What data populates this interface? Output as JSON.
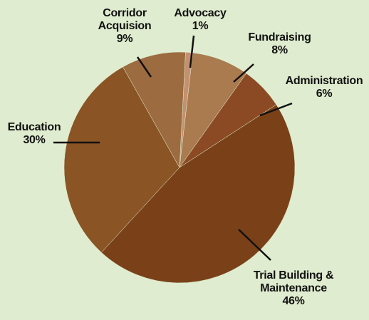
{
  "chart_data": {
    "type": "pie",
    "categories": [
      "Advocacy",
      "Fundraising",
      "Administration",
      "Trial Building & Maintenance",
      "Education",
      "Corridor Acquision"
    ],
    "values": [
      1,
      8,
      6,
      46,
      30,
      9
    ],
    "value_labels": [
      "1%",
      "8%",
      "6%",
      "46%",
      "30%",
      "9%"
    ],
    "colors": [
      "#c4906e",
      "#a97b4f",
      "#8b4a24",
      "#7a4119",
      "#8a5424",
      "#9c6b40"
    ]
  }
}
